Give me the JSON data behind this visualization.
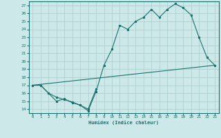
{
  "xlabel": "Humidex (Indice chaleur)",
  "xlim": [
    -0.5,
    23.5
  ],
  "ylim": [
    13.5,
    27.5
  ],
  "xticks": [
    0,
    1,
    2,
    3,
    4,
    5,
    6,
    7,
    8,
    9,
    10,
    11,
    12,
    13,
    14,
    15,
    16,
    17,
    18,
    19,
    20,
    21,
    22,
    23
  ],
  "yticks": [
    14,
    15,
    16,
    17,
    18,
    19,
    20,
    21,
    22,
    23,
    24,
    25,
    26,
    27
  ],
  "bg_color": "#cce8e8",
  "grid_color": "#aacccc",
  "line_color": "#1a7070",
  "curve1_x": [
    0,
    1,
    2,
    3,
    4,
    5,
    6,
    7,
    8,
    9,
    10,
    11,
    12,
    13,
    14,
    15,
    16,
    17,
    18,
    19,
    20,
    21,
    22,
    23
  ],
  "curve1_y": [
    17,
    17,
    16,
    15.5,
    15.2,
    14.9,
    14.5,
    13.8,
    16.2,
    19.5,
    21.5,
    24.5,
    24,
    25,
    25.5,
    26.5,
    25.5,
    26.5,
    27.2,
    26.7,
    25.8,
    23,
    20.5,
    19.5
  ],
  "curve2_x": [
    0,
    1,
    2,
    3,
    4,
    5,
    6,
    7,
    8
  ],
  "curve2_y": [
    17,
    17,
    16,
    15,
    15.3,
    14.8,
    14.5,
    14,
    16.5
  ],
  "line3_x": [
    0,
    23
  ],
  "line3_y": [
    17,
    19.5
  ]
}
